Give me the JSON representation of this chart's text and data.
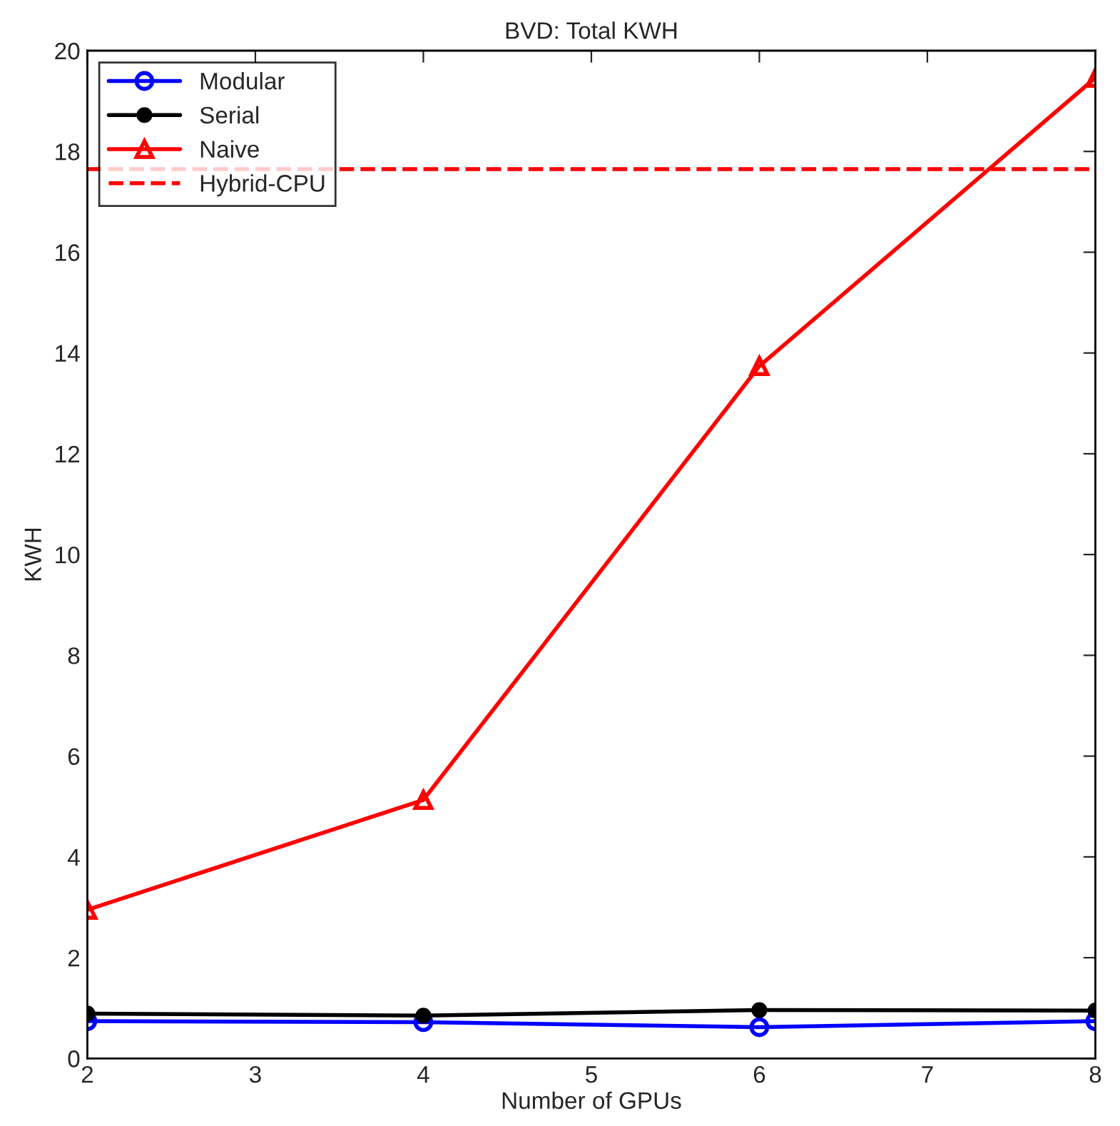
{
  "chart_data": {
    "type": "line",
    "title": "BVD: Total KWH",
    "xlabel": "Number of GPUs",
    "ylabel": "KWH",
    "x": [
      2,
      4,
      6,
      8
    ],
    "series": [
      {
        "name": "Modular",
        "color": "#0000ff",
        "marker": "circle",
        "values": [
          0.74,
          0.72,
          0.62,
          0.74
        ]
      },
      {
        "name": "Serial",
        "color": "#000000",
        "marker": "dot",
        "values": [
          0.89,
          0.85,
          0.96,
          0.95
        ]
      },
      {
        "name": "Naive",
        "color": "#ff0000",
        "marker": "triangle",
        "values": [
          2.95,
          5.13,
          13.74,
          19.46
        ]
      },
      {
        "name": "Hybrid-CPU",
        "color": "#ff0000",
        "marker": "none",
        "line_style": "dashed",
        "x": [
          2,
          8
        ],
        "values": [
          17.65,
          17.65
        ]
      }
    ],
    "xlim": [
      2,
      8
    ],
    "ylim": [
      0,
      20
    ],
    "xticks": [
      2,
      3,
      4,
      5,
      6,
      7,
      8
    ],
    "yticks": [
      0,
      2,
      4,
      6,
      8,
      10,
      12,
      14,
      16,
      18,
      20
    ],
    "grid": false,
    "legend": "top left"
  }
}
